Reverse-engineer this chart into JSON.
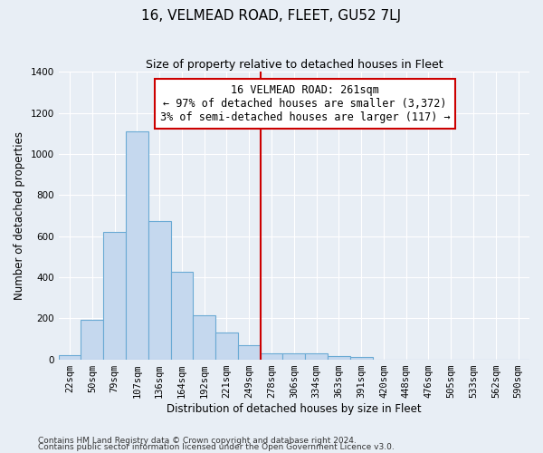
{
  "title": "16, VELMEAD ROAD, FLEET, GU52 7LJ",
  "subtitle": "Size of property relative to detached houses in Fleet",
  "xlabel": "Distribution of detached houses by size in Fleet",
  "ylabel": "Number of detached properties",
  "footnote1": "Contains HM Land Registry data © Crown copyright and database right 2024.",
  "footnote2": "Contains public sector information licensed under the Open Government Licence v3.0.",
  "bar_labels": [
    "22sqm",
    "50sqm",
    "79sqm",
    "107sqm",
    "136sqm",
    "164sqm",
    "192sqm",
    "221sqm",
    "249sqm",
    "278sqm",
    "306sqm",
    "334sqm",
    "363sqm",
    "391sqm",
    "420sqm",
    "448sqm",
    "476sqm",
    "505sqm",
    "533sqm",
    "562sqm",
    "590sqm"
  ],
  "bar_values": [
    20,
    193,
    621,
    1109,
    672,
    428,
    215,
    130,
    68,
    31,
    31,
    28,
    18,
    10,
    0,
    0,
    0,
    0,
    0,
    0,
    0
  ],
  "bar_color": "#c5d8ee",
  "bar_edge_color": "#6aaad4",
  "ylim": [
    0,
    1400
  ],
  "yticks": [
    0,
    200,
    400,
    600,
    800,
    1000,
    1200,
    1400
  ],
  "property_size_label": "16 VELMEAD ROAD: 261sqm",
  "annotation_line1": "← 97% of detached houses are smaller (3,372)",
  "annotation_line2": "3% of semi-detached houses are larger (117) →",
  "vline_x": 8,
  "vline_color": "#cc0000",
  "annotation_box_color": "#ffffff",
  "annotation_box_edge": "#cc0000",
  "background_color": "#e8eef5",
  "grid_color": "#ffffff",
  "title_fontsize": 11,
  "subtitle_fontsize": 9,
  "axis_label_fontsize": 8.5,
  "tick_fontsize": 7.5,
  "annotation_fontsize": 8.5,
  "footnote_fontsize": 6.5
}
